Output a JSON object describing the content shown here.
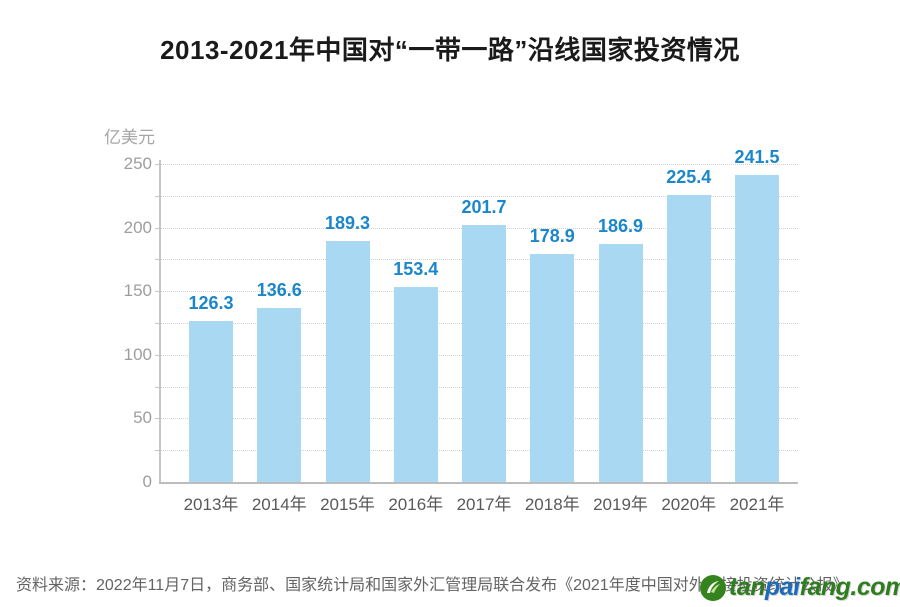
{
  "title": "2013-2021年中国对“一带一路”沿线国家投资情况",
  "chart_data": {
    "type": "bar",
    "title": "2013-2021年中国对“一带一路”沿线国家投资情况",
    "unit_label": "亿美元",
    "categories": [
      "2013年",
      "2014年",
      "2015年",
      "2016年",
      "2017年",
      "2018年",
      "2019年",
      "2020年",
      "2021年"
    ],
    "values": [
      126.3,
      136.6,
      189.3,
      153.4,
      201.7,
      178.9,
      186.9,
      225.4,
      241.5
    ],
    "ylim": [
      0,
      250
    ],
    "yticks": [
      0,
      50,
      100,
      150,
      200,
      250
    ],
    "grid_interval": 25,
    "grid": true,
    "legend": false,
    "bar_color": "#a9d8f2",
    "value_label_color": "#1b87ca"
  },
  "source_note": "资料来源：2022年11月7日，商务部、国家统计局和国家外汇管理局联合发布《2021年度中国对外直接投资统计公报》",
  "watermark": {
    "logo_icon": "tanpaifang-leaf-logo",
    "parts": [
      {
        "text": "tan",
        "color": "#2e7d1f"
      },
      {
        "text": "pai",
        "color": "#1e6bb8"
      },
      {
        "text": "fang.com",
        "color": "#2e7d1f"
      }
    ]
  }
}
